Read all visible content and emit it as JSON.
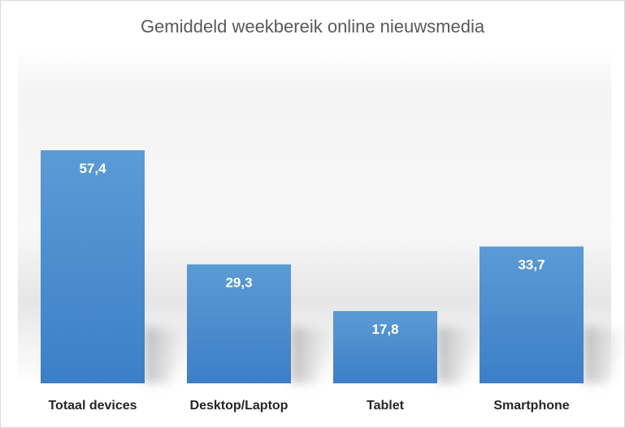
{
  "chart_data": {
    "type": "bar",
    "title": "Gemiddeld weekbereik online nieuwsmedia",
    "categories": [
      "Totaal devices",
      "Desktop/Laptop",
      "Tablet",
      "Smartphone"
    ],
    "values": [
      57.4,
      29.3,
      17.8,
      33.7
    ],
    "value_labels": [
      "57,4",
      "29,3",
      "17,8",
      "33,7"
    ],
    "xlabel": "",
    "ylabel": "",
    "ylim": [
      0,
      60
    ],
    "grid": false,
    "legend": "none",
    "colors": {
      "bar": "#4a8fd4",
      "bar_top": "#5b9bd5",
      "bar_bottom": "#3d7fc7",
      "label": "#ffffff",
      "category": "#262626",
      "title": "#595959"
    }
  }
}
